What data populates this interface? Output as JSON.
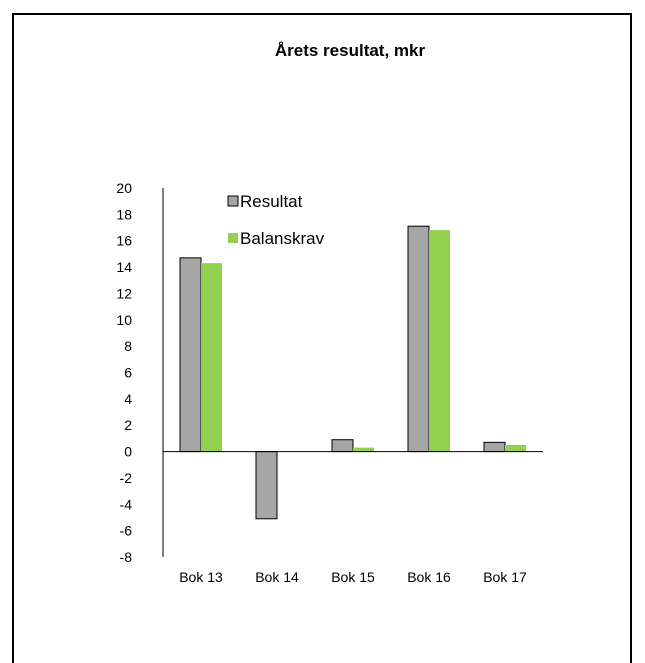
{
  "chart_data": {
    "type": "bar",
    "title": "Årets resultat, mkr",
    "xlabel": "",
    "ylabel": "",
    "categories": [
      "Bok 13",
      "Bok 14",
      "Bok 15",
      "Bok 16",
      "Bok 17"
    ],
    "series": [
      {
        "name": "Resultat",
        "values": [
          14.7,
          -5.1,
          0.9,
          17.1,
          0.7
        ],
        "color": "#a6a6a6"
      },
      {
        "name": "Balanskrav",
        "values": [
          14.3,
          0,
          0.3,
          16.8,
          0.5
        ],
        "color": "#92d050"
      }
    ],
    "ylim": [
      -8,
      20
    ],
    "yticks": [
      "20",
      "18",
      "16",
      "14",
      "12",
      "10",
      "8",
      "6",
      "4",
      "2",
      "0",
      "-2",
      "-4",
      "-6",
      "-8"
    ],
    "grid": false,
    "legend_position": "top-left"
  }
}
